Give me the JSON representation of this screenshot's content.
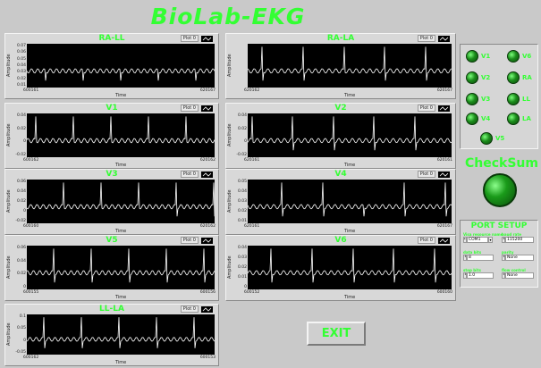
{
  "app": {
    "title": "BioLab-EKG"
  },
  "plots": [
    {
      "id": "ra-ll",
      "title": "RA-LL",
      "legend": "Plot 0",
      "y_label": "Amplitude",
      "y_ticks": [
        "0.07",
        "0.06",
        "0.05",
        "0.04",
        "0.03",
        "0.02",
        "0.01"
      ],
      "x_label": "Time",
      "x_ticks": [
        "600161",
        "620167"
      ]
    },
    {
      "id": "ra-la",
      "title": "RA-LA",
      "legend": "Plot 0",
      "y_label": "Amplitude",
      "y_ticks": [
        "",
        "",
        "",
        ""
      ],
      "x_label": "Time",
      "x_ticks": [
        "620162",
        "620167"
      ]
    },
    {
      "id": "v1",
      "title": "V1",
      "legend": "Plot 0",
      "y_label": "Amplitude",
      "y_ticks": [
        "0.04",
        "0.02",
        "0",
        "-0.02"
      ],
      "x_label": "Time",
      "x_ticks": [
        "600162",
        "620162"
      ]
    },
    {
      "id": "v2",
      "title": "V2",
      "legend": "Plot 0",
      "y_label": "Amplitude",
      "y_ticks": [
        "0.04",
        "0.02",
        "0",
        "-0.02"
      ],
      "x_label": "Time",
      "x_ticks": [
        "620161",
        "620161"
      ]
    },
    {
      "id": "v3",
      "title": "V3",
      "legend": "Plot 0",
      "y_label": "Amplitude",
      "y_ticks": [
        "0.06",
        "0.04",
        "0.02",
        "0",
        "-0.02"
      ],
      "x_label": "Time",
      "x_ticks": [
        "600160",
        "620162"
      ]
    },
    {
      "id": "v4",
      "title": "V4",
      "legend": "Plot 0",
      "y_label": "Amplitude",
      "y_ticks": [
        "0.05",
        "0.04",
        "0.03",
        "0.02",
        "0.01"
      ],
      "x_label": "Time",
      "x_ticks": [
        "620161",
        "620167"
      ]
    },
    {
      "id": "v5",
      "title": "V5",
      "legend": "Plot 0",
      "y_label": "Amplitude",
      "y_ticks": [
        "0.06",
        "0.04",
        "0.02",
        "0"
      ],
      "x_label": "Time",
      "x_ticks": [
        "600155",
        "600156"
      ]
    },
    {
      "id": "v6",
      "title": "V6",
      "legend": "Plot 0",
      "y_label": "Amplitude",
      "y_ticks": [
        "0.04",
        "0.03",
        "0.02",
        "0.01",
        "0"
      ],
      "x_label": "Time",
      "x_ticks": [
        "600152",
        "600160"
      ]
    },
    {
      "id": "ll-la",
      "title": "LL-LA",
      "legend": "Plot 0",
      "y_label": "Amplitude",
      "y_ticks": [
        "0.1",
        "0.05",
        "0",
        "-0.05"
      ],
      "x_label": "Time",
      "x_ticks": [
        "600162",
        "600153"
      ]
    }
  ],
  "leds": [
    {
      "label": "V1"
    },
    {
      "label": "V6"
    },
    {
      "label": "V2"
    },
    {
      "label": "RA"
    },
    {
      "label": "V3"
    },
    {
      "label": "LL"
    },
    {
      "label": "V4"
    },
    {
      "label": "LA"
    },
    {
      "label": "V5"
    }
  ],
  "checksum": {
    "label": "CheckSum"
  },
  "setup": {
    "title": "PORT SETUP",
    "fields": [
      {
        "label": "Visa resource name",
        "value": "COM1",
        "type": "dropdown"
      },
      {
        "label": "baud rate",
        "value": "115200",
        "type": "spin"
      },
      {
        "label": "data bits",
        "value": "8",
        "type": "spin"
      },
      {
        "label": "parity",
        "value": "None",
        "type": "spin"
      },
      {
        "label": "stop bits",
        "value": "1.0",
        "type": "spin"
      },
      {
        "label": "flow control",
        "value": "None",
        "type": "spin"
      }
    ]
  },
  "exit": {
    "label": "EXIT"
  },
  "colors": {
    "accent": "#33ff33",
    "plot_bg": "#000000",
    "trace": "#ffffff",
    "panel": "#d8d8d8"
  }
}
